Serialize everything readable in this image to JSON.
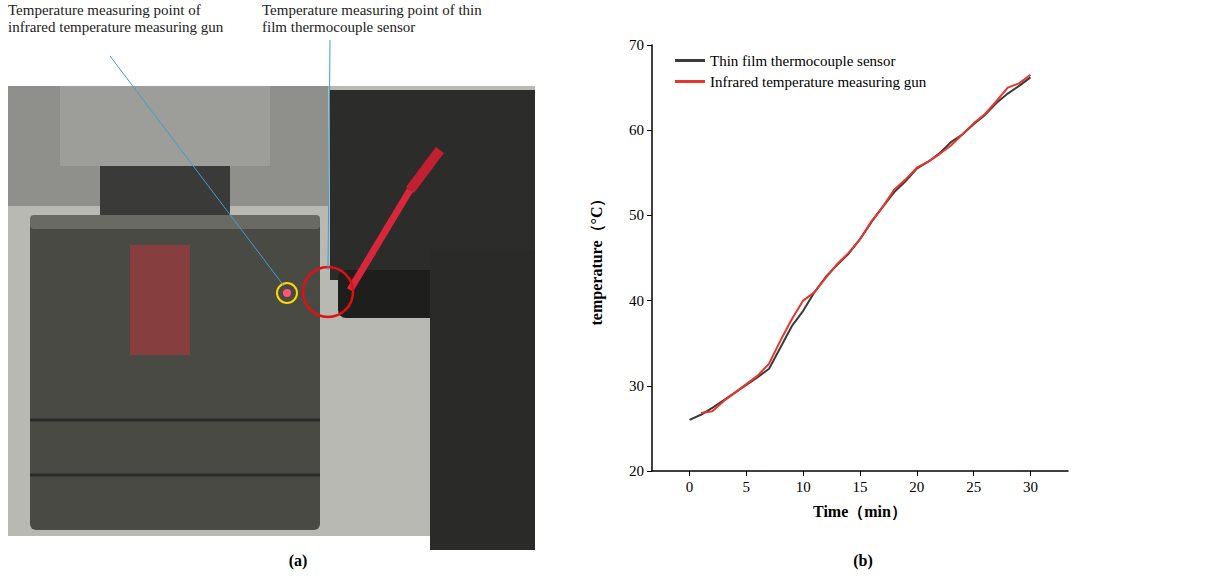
{
  "figure": {
    "panels": [
      {
        "label": "(a)",
        "annotations": [
          "Temperature measuring point of infrared temperature measuring gun",
          "Temperature measuring point of thin film thermocouple sensor"
        ]
      },
      {
        "label": "(b)"
      }
    ]
  },
  "chart_data": {
    "type": "line",
    "x_label": "Time（min）",
    "y_label": "temperature（°C）",
    "x": [
      0,
      1,
      2,
      3,
      4,
      5,
      6,
      7,
      8,
      9,
      10,
      11,
      12,
      13,
      14,
      15,
      16,
      17,
      18,
      19,
      20,
      21,
      22,
      23,
      24,
      25,
      26,
      27,
      28,
      29,
      30
    ],
    "series": [
      {
        "name": "Thin film thermocouple sensor",
        "color": "#3a3a3a",
        "line_style": "solid",
        "values": [
          26,
          26.6,
          27.4,
          28.3,
          29.2,
          30.1,
          31.0,
          32.0,
          34.5,
          37.0,
          38.8,
          41.0,
          42.8,
          44.2,
          45.5,
          47.2,
          49.2,
          51.0,
          52.7,
          54.0,
          55.5,
          56.3,
          57.3,
          58.6,
          59.5,
          60.7,
          61.8,
          63.2,
          64.3,
          65.2,
          66.2
        ]
      },
      {
        "name": "Infrared temperature measuring gun",
        "color": "#e8352b",
        "line_style": "solid",
        "values": [
          null,
          26.8,
          27.0,
          28.2,
          29.2,
          30.2,
          31.2,
          32.6,
          35.3,
          37.8,
          40.0,
          41.0,
          42.7,
          44.3,
          45.6,
          47.2,
          49.3,
          51.0,
          53.0,
          54.2,
          55.6,
          56.3,
          57.2,
          58.2,
          59.5,
          60.8,
          61.9,
          63.4,
          65.0,
          65.5,
          66.5
        ]
      }
    ],
    "xlim": [
      -3.3,
      33.3
    ],
    "xticks": [
      0,
      5,
      10,
      15,
      20,
      25,
      30
    ],
    "ylim": [
      20,
      70
    ],
    "yticks": [
      20,
      30,
      40,
      50,
      60,
      70
    ],
    "grid": false,
    "legend": "upper left"
  }
}
